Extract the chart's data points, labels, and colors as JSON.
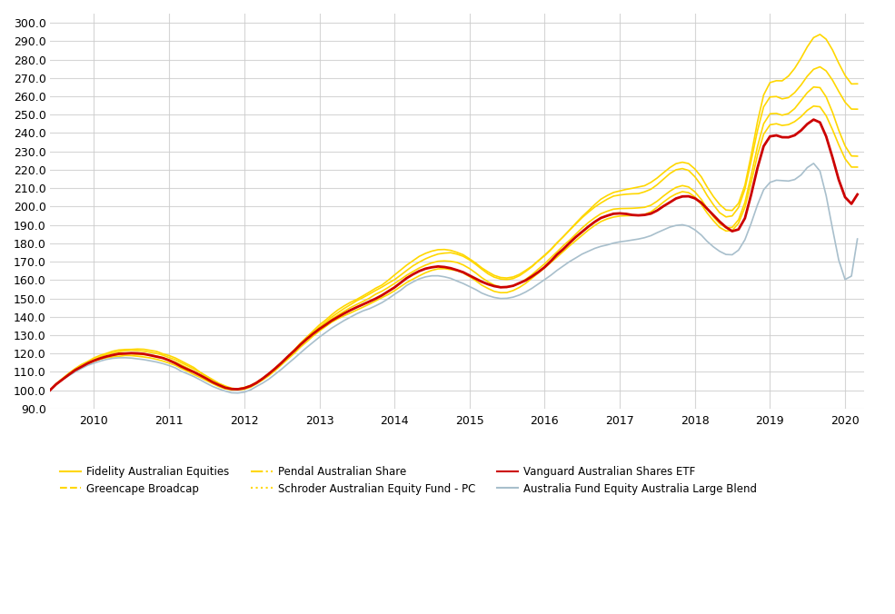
{
  "title": "",
  "ylim": [
    90.0,
    305.0
  ],
  "yticks": [
    90.0,
    100.0,
    110.0,
    120.0,
    130.0,
    140.0,
    150.0,
    160.0,
    170.0,
    180.0,
    190.0,
    200.0,
    210.0,
    220.0,
    230.0,
    240.0,
    250.0,
    260.0,
    270.0,
    280.0,
    290.0,
    300.0
  ],
  "xtick_years": [
    2010,
    2011,
    2012,
    2013,
    2014,
    2015,
    2016,
    2017,
    2018,
    2019,
    2020
  ],
  "series": {
    "fidelity": {
      "label": "Fidelity Australian Equities",
      "color": "#FFD700",
      "linewidth": 1.2,
      "zorder": 3
    },
    "greencape": {
      "label": "Greencape Broadcap",
      "color": "#FFD700",
      "linewidth": 1.2,
      "zorder": 3
    },
    "pendal": {
      "label": "Pendal Australian Share",
      "color": "#FFD700",
      "linewidth": 1.2,
      "zorder": 3
    },
    "schroder": {
      "label": "Schroder Australian Equity Fund - PC",
      "color": "#FFD700",
      "linewidth": 1.2,
      "zorder": 3
    },
    "vanguard": {
      "label": "Vanguard Australian Shares ETF",
      "color": "#CC0000",
      "linewidth": 2.0,
      "zorder": 5
    },
    "australia_fund": {
      "label": "Australia Fund Equity Australia Large Blend",
      "color": "#A8BFCC",
      "linewidth": 1.2,
      "zorder": 4
    }
  },
  "background_color": "#FFFFFF",
  "grid_color": "#CCCCCC",
  "legend_colors": {
    "fidelity": "#FFD700",
    "greencape": "#FFD700",
    "pendal": "#FFD700",
    "schroder": "#FFD700",
    "vanguard": "#CC0000",
    "australia_fund": "#A8BFCC"
  }
}
